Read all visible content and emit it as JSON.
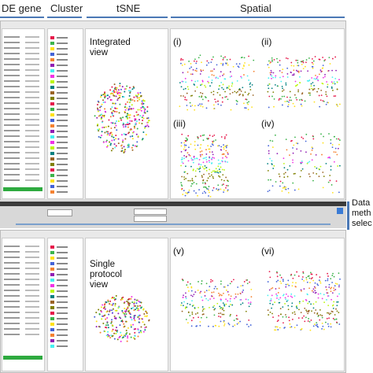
{
  "header": {
    "columns": [
      "DE gene",
      "Cluster",
      "tSNE",
      "Spatial"
    ]
  },
  "integrated": {
    "title": [
      "Integrated",
      "view"
    ],
    "panels": [
      "(i)",
      "(ii)",
      "(iii)",
      "(iv)"
    ]
  },
  "single": {
    "title": [
      "Single",
      "protocol",
      "view"
    ],
    "panels": [
      "(v)",
      "(vi)"
    ]
  },
  "side_note": [
    "Data",
    "meth",
    "selec"
  ]
}
